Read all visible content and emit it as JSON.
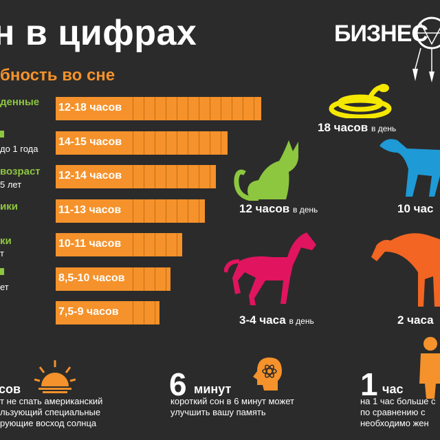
{
  "header": {
    "title": "н в цифрах",
    "subtitle": "бность во сне",
    "brand": "БИЗНЕС"
  },
  "categories": [
    {
      "title": "денные",
      "sub": ""
    },
    {
      "title": "",
      "sub": "до 1 года"
    },
    {
      "title": "возраст",
      "sub": "5 лет"
    },
    {
      "title": "ики",
      "sub": ""
    },
    {
      "title": "ки",
      "sub": "т"
    },
    {
      "title": "",
      "sub": "ет"
    },
    {
      "title": "",
      "sub": ""
    }
  ],
  "chart_data": {
    "type": "bar",
    "orientation": "horizontal",
    "categories": [
      "12-18 часов",
      "14-15 часов",
      "12-14 часов",
      "11-13 часов",
      "10-11 часов",
      "8,5-10 часов",
      "7,5-9 часов"
    ],
    "values": [
      18,
      15,
      14,
      13,
      11,
      10,
      9
    ],
    "title": "",
    "xlabel": "",
    "ylabel": ""
  },
  "animals": [
    {
      "value": "18 часов",
      "unit": "в день",
      "color": "#f5e800",
      "icon": "snake-icon"
    },
    {
      "value": "12 часов",
      "unit": "в день",
      "color": "#8dc63f",
      "icon": "cat-icon"
    },
    {
      "value": "10 час",
      "unit": "",
      "color": "#1e9ad6",
      "icon": "dog-icon"
    },
    {
      "value": "3-4 часа",
      "unit": "в день",
      "color": "#e0145f",
      "icon": "horse-icon"
    },
    {
      "value": "2 часа",
      "unit": "",
      "color": "#f26522",
      "icon": "giraffe-icon"
    }
  ],
  "facts": [
    {
      "big": "",
      "word": "сов",
      "lines": [
        "т не спать американский",
        "льзующий специальные",
        "рующие восход солнца"
      ],
      "icon": "sunrise-icon"
    },
    {
      "big": "6",
      "word": "минут",
      "lines": [
        "короткий сон в 6 минут может",
        "улучшить вашу память"
      ],
      "icon": "brain-icon"
    },
    {
      "big": "1",
      "word": "час",
      "lines": [
        "на 1 час больше с",
        "по сравнению с",
        "необходимо жен"
      ],
      "icon": "person-icon"
    }
  ],
  "colors": {
    "bar": "#f5922b",
    "background": "#2b2b2b",
    "category": "#8dc63f"
  }
}
